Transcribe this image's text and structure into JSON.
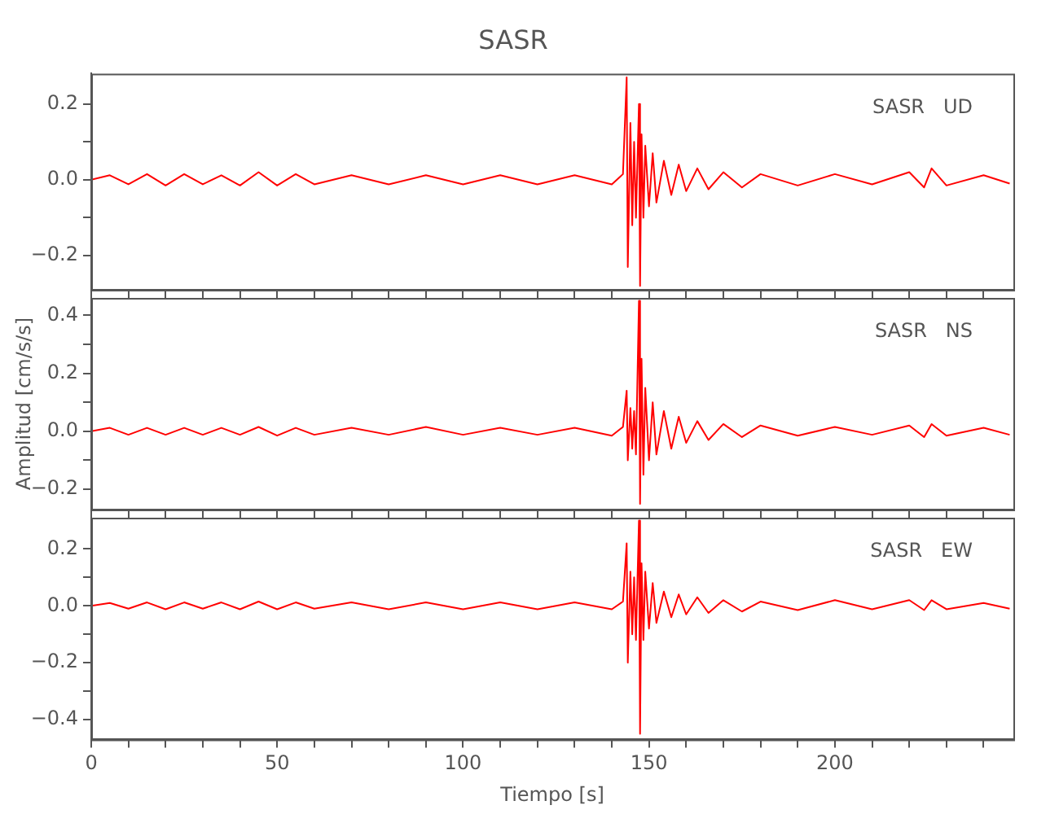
{
  "chart_data": [
    {
      "type": "line",
      "title": "SASR",
      "annotations": [
        "SASR   UD"
      ],
      "tick_labels": "y",
      "xlim": [
        0,
        248
      ],
      "xticks": [
        0,
        {
          "value": 10,
          "label": null
        },
        {
          "value": 20,
          "label": null
        },
        {
          "value": 30,
          "label": null
        },
        {
          "value": 40,
          "label": null
        },
        {
          "value": 50,
          "label": null
        },
        {
          "value": 60,
          "label": null
        },
        {
          "value": 70,
          "label": null
        },
        {
          "value": 80,
          "label": null
        },
        {
          "value": 90,
          "label": null
        },
        {
          "value": 100,
          "label": null
        },
        {
          "value": 110,
          "label": null
        },
        {
          "value": 120,
          "label": null
        },
        {
          "value": 130,
          "label": null
        },
        {
          "value": 140,
          "label": null
        },
        {
          "value": 150,
          "label": null
        },
        {
          "value": 160,
          "label": null
        },
        {
          "value": 170,
          "label": null
        },
        {
          "value": 180,
          "label": null
        },
        {
          "value": 190,
          "label": null
        },
        {
          "value": 200,
          "label": null
        },
        {
          "value": 210,
          "label": null
        },
        {
          "value": 220,
          "label": null
        },
        {
          "value": 230,
          "label": null
        },
        {
          "value": 240,
          "label": null
        }
      ],
      "ylim": [
        -0.29,
        0.28
      ],
      "yticks": [
        {
          "value": -0.2,
          "label": "−0.2"
        },
        {
          "value": -0.1,
          "label": null
        },
        {
          "value": 0,
          "label": "0.0"
        },
        {
          "value": 0.1,
          "label": null
        },
        {
          "value": 0.2,
          "label": "0.2"
        }
      ],
      "marker": "none",
      "line_style": "solid",
      "series": [
        {
          "color": "#ff0000",
          "x": [
            0,
            5,
            10,
            15,
            20,
            25,
            30,
            35,
            40,
            45,
            50,
            55,
            60,
            70,
            80,
            90,
            100,
            110,
            120,
            130,
            140,
            143,
            144,
            144.3,
            145,
            145.5,
            146,
            146.5,
            147.3,
            147.6,
            148,
            148.5,
            149,
            150,
            151,
            152,
            154,
            156,
            158,
            160,
            163,
            166,
            170,
            175,
            180,
            190,
            200,
            210,
            220,
            224,
            226,
            230,
            240,
            247
          ],
          "values": [
            0,
            0.012,
            -0.012,
            0.015,
            -0.015,
            0.015,
            -0.012,
            0.012,
            -0.015,
            0.02,
            -0.015,
            0.015,
            -0.012,
            0.012,
            -0.012,
            0.012,
            -0.012,
            0.012,
            -0.012,
            0.012,
            -0.012,
            0.015,
            0.27,
            -0.23,
            0.15,
            -0.12,
            0.1,
            -0.1,
            0.2,
            -0.28,
            0.12,
            -0.1,
            0.09,
            -0.07,
            0.07,
            -0.06,
            0.05,
            -0.04,
            0.04,
            -0.03,
            0.03,
            -0.025,
            0.02,
            -0.02,
            0.015,
            -0.015,
            0.015,
            -0.012,
            0.02,
            -0.02,
            0.03,
            -0.015,
            0.012,
            -0.01
          ]
        }
      ]
    },
    {
      "type": "line",
      "ylabel": "Amplitud [cm/s/s]",
      "annotations": [
        "SASR   NS"
      ],
      "tick_labels": "y",
      "xlim": [
        0,
        248
      ],
      "xticks": [
        0,
        {
          "value": 10,
          "label": null
        },
        {
          "value": 20,
          "label": null
        },
        {
          "value": 30,
          "label": null
        },
        {
          "value": 40,
          "label": null
        },
        {
          "value": 50,
          "label": null
        },
        {
          "value": 60,
          "label": null
        },
        {
          "value": 70,
          "label": null
        },
        {
          "value": 80,
          "label": null
        },
        {
          "value": 90,
          "label": null
        },
        {
          "value": 100,
          "label": null
        },
        {
          "value": 110,
          "label": null
        },
        {
          "value": 120,
          "label": null
        },
        {
          "value": 130,
          "label": null
        },
        {
          "value": 140,
          "label": null
        },
        {
          "value": 150,
          "label": null
        },
        {
          "value": 160,
          "label": null
        },
        {
          "value": 170,
          "label": null
        },
        {
          "value": 180,
          "label": null
        },
        {
          "value": 190,
          "label": null
        },
        {
          "value": 200,
          "label": null
        },
        {
          "value": 210,
          "label": null
        },
        {
          "value": 220,
          "label": null
        },
        {
          "value": 230,
          "label": null
        },
        {
          "value": 240,
          "label": null
        }
      ],
      "ylim": [
        -0.27,
        0.46
      ],
      "yticks": [
        {
          "value": -0.2,
          "label": "−0.2"
        },
        {
          "value": -0.1,
          "label": null
        },
        {
          "value": 0,
          "label": "0.0"
        },
        {
          "value": 0.1,
          "label": null
        },
        {
          "value": 0.2,
          "label": "0.2"
        },
        {
          "value": 0.3,
          "label": null
        },
        {
          "value": 0.4,
          "label": "0.4"
        }
      ],
      "marker": "none",
      "line_style": "solid",
      "series": [
        {
          "color": "#ff0000",
          "x": [
            0,
            5,
            10,
            15,
            20,
            25,
            30,
            35,
            40,
            45,
            50,
            55,
            60,
            70,
            80,
            90,
            100,
            110,
            120,
            130,
            140,
            143,
            144,
            144.3,
            145,
            145.5,
            146,
            146.5,
            147.3,
            147.6,
            148,
            148.5,
            149,
            150,
            151,
            152,
            154,
            156,
            158,
            160,
            163,
            166,
            170,
            175,
            180,
            190,
            200,
            210,
            220,
            224,
            226,
            230,
            240,
            247
          ],
          "values": [
            0,
            0.012,
            -0.012,
            0.012,
            -0.012,
            0.012,
            -0.012,
            0.012,
            -0.012,
            0.015,
            -0.015,
            0.012,
            -0.012,
            0.012,
            -0.012,
            0.015,
            -0.012,
            0.012,
            -0.012,
            0.012,
            -0.015,
            0.015,
            0.14,
            -0.1,
            0.08,
            -0.06,
            0.07,
            -0.08,
            0.45,
            -0.25,
            0.25,
            -0.15,
            0.15,
            -0.1,
            0.1,
            -0.08,
            0.07,
            -0.06,
            0.05,
            -0.04,
            0.035,
            -0.03,
            0.025,
            -0.02,
            0.02,
            -0.015,
            0.015,
            -0.012,
            0.02,
            -0.02,
            0.025,
            -0.015,
            0.012,
            -0.012
          ]
        }
      ]
    },
    {
      "type": "line",
      "xlabel": "Tiempo [s]",
      "annotations": [
        "SASR   EW"
      ],
      "xlim": [
        0,
        248
      ],
      "xticks": [
        0,
        {
          "value": 10,
          "label": null
        },
        {
          "value": 20,
          "label": null
        },
        {
          "value": 30,
          "label": null
        },
        {
          "value": 40,
          "label": null
        },
        50,
        {
          "value": 60,
          "label": null
        },
        {
          "value": 70,
          "label": null
        },
        {
          "value": 80,
          "label": null
        },
        {
          "value": 90,
          "label": null
        },
        100,
        {
          "value": 110,
          "label": null
        },
        {
          "value": 120,
          "label": null
        },
        {
          "value": 130,
          "label": null
        },
        {
          "value": 140,
          "label": null
        },
        150,
        {
          "value": 160,
          "label": null
        },
        {
          "value": 170,
          "label": null
        },
        {
          "value": 180,
          "label": null
        },
        {
          "value": 190,
          "label": null
        },
        200,
        {
          "value": 210,
          "label": null
        },
        {
          "value": 220,
          "label": null
        },
        {
          "value": 230,
          "label": null
        },
        {
          "value": 240,
          "label": null
        }
      ],
      "ylim": [
        -0.47,
        0.31
      ],
      "yticks": [
        {
          "value": -0.4,
          "label": "−0.4"
        },
        {
          "value": -0.3,
          "label": null
        },
        {
          "value": -0.2,
          "label": "−0.2"
        },
        {
          "value": -0.1,
          "label": null
        },
        {
          "value": 0,
          "label": "0.0"
        },
        {
          "value": 0.1,
          "label": null
        },
        {
          "value": 0.2,
          "label": "0.2"
        }
      ],
      "marker": "none",
      "line_style": "solid",
      "series": [
        {
          "color": "#ff0000",
          "x": [
            0,
            5,
            10,
            15,
            20,
            25,
            30,
            35,
            40,
            45,
            50,
            55,
            60,
            70,
            80,
            90,
            100,
            110,
            120,
            130,
            140,
            143,
            144,
            144.3,
            145,
            145.5,
            146,
            146.5,
            147.3,
            147.6,
            148,
            148.5,
            149,
            150,
            151,
            152,
            154,
            156,
            158,
            160,
            163,
            166,
            170,
            175,
            180,
            190,
            200,
            210,
            220,
            224,
            226,
            230,
            240,
            247
          ],
          "values": [
            0,
            0.01,
            -0.01,
            0.012,
            -0.012,
            0.012,
            -0.01,
            0.012,
            -0.012,
            0.015,
            -0.012,
            0.012,
            -0.01,
            0.012,
            -0.012,
            0.012,
            -0.012,
            0.012,
            -0.012,
            0.012,
            -0.012,
            0.015,
            0.22,
            -0.2,
            0.12,
            -0.1,
            0.1,
            -0.12,
            0.3,
            -0.45,
            0.15,
            -0.12,
            0.12,
            -0.08,
            0.08,
            -0.06,
            0.05,
            -0.04,
            0.04,
            -0.03,
            0.03,
            -0.025,
            0.02,
            -0.02,
            0.015,
            -0.015,
            0.02,
            -0.012,
            0.02,
            -0.015,
            0.02,
            -0.012,
            0.01,
            -0.01
          ]
        }
      ]
    }
  ]
}
